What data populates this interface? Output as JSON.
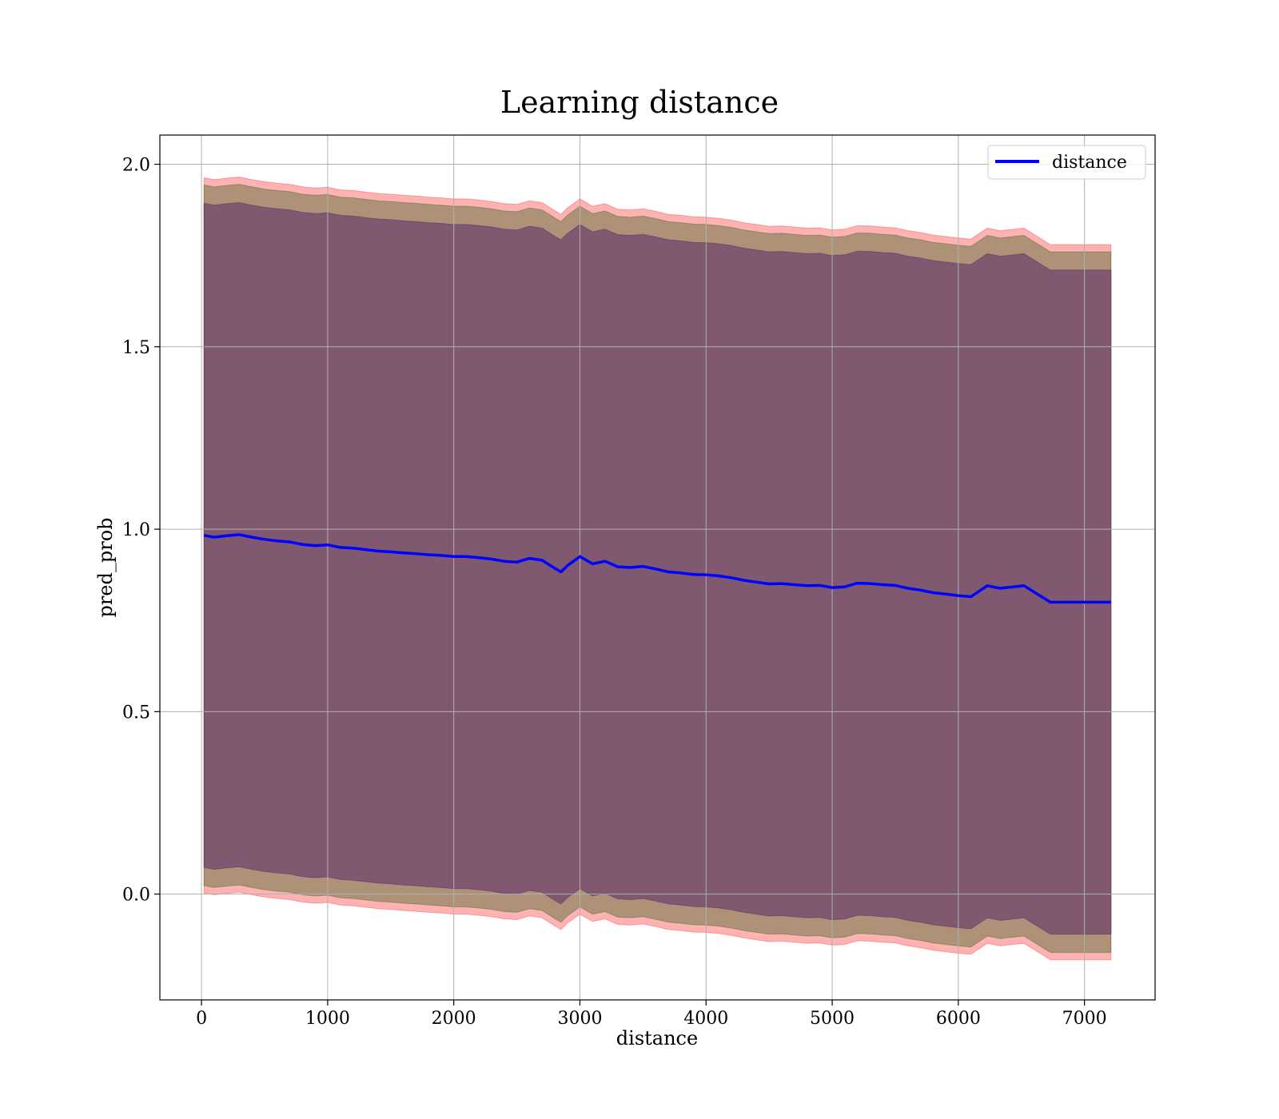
{
  "chart_data": {
    "type": "line",
    "title": "Learning distance",
    "xlabel": "distance",
    "ylabel": "pred_prob",
    "xlim": [
      -330,
      7560
    ],
    "ylim": [
      -0.29,
      2.08
    ],
    "xticks": [
      0,
      1000,
      2000,
      3000,
      4000,
      5000,
      6000,
      7000
    ],
    "yticks": [
      0.0,
      0.5,
      1.0,
      1.5,
      2.0
    ],
    "xtick_labels": [
      "0",
      "1000",
      "2000",
      "3000",
      "4000",
      "5000",
      "6000",
      "7000"
    ],
    "ytick_labels": [
      "0.0",
      "0.5",
      "1.0",
      "1.5",
      "2.0"
    ],
    "grid": true,
    "legend": {
      "position": "top-right",
      "entries": [
        "distance"
      ]
    },
    "colors": {
      "line": "#0000ff",
      "band_outer": "#ff0000",
      "band_middle": "#4b6b2e",
      "band_inner": "#5b2a6e",
      "grid": "#b0b0b0"
    },
    "x": [
      20,
      100,
      200,
      300,
      400,
      500,
      600,
      700,
      800,
      900,
      1000,
      1100,
      1200,
      1300,
      1400,
      1500,
      1600,
      1700,
      1800,
      1900,
      2000,
      2100,
      2200,
      2300,
      2400,
      2500,
      2600,
      2700,
      2800,
      2850,
      2900,
      3000,
      3100,
      3200,
      3300,
      3400,
      3500,
      3600,
      3700,
      3800,
      3900,
      4000,
      4100,
      4200,
      4300,
      4400,
      4500,
      4600,
      4700,
      4800,
      4900,
      5000,
      5100,
      5200,
      5300,
      5400,
      5500,
      5600,
      5700,
      5800,
      5900,
      6000,
      6100,
      6230,
      6330,
      6520,
      6730,
      6850,
      7210
    ],
    "series": [
      {
        "name": "distance",
        "values": [
          0.983,
          0.978,
          0.982,
          0.985,
          0.978,
          0.972,
          0.968,
          0.965,
          0.958,
          0.955,
          0.957,
          0.95,
          0.948,
          0.944,
          0.94,
          0.938,
          0.935,
          0.933,
          0.93,
          0.928,
          0.925,
          0.925,
          0.922,
          0.918,
          0.912,
          0.91,
          0.92,
          0.915,
          0.893,
          0.883,
          0.9,
          0.925,
          0.905,
          0.912,
          0.897,
          0.895,
          0.898,
          0.891,
          0.883,
          0.88,
          0.876,
          0.875,
          0.872,
          0.867,
          0.86,
          0.855,
          0.85,
          0.851,
          0.848,
          0.845,
          0.846,
          0.84,
          0.842,
          0.852,
          0.851,
          0.848,
          0.846,
          0.838,
          0.833,
          0.826,
          0.822,
          0.818,
          0.815,
          0.845,
          0.838,
          0.845,
          0.8,
          0.8,
          0.8
        ]
      }
    ],
    "bands": [
      {
        "halfwidth": 0.98,
        "color": "#ff0000",
        "opacity": 0.3
      },
      {
        "halfwidth": 0.96,
        "color": "#4b6b2e",
        "opacity": 0.45
      },
      {
        "halfwidth": 0.91,
        "color": "#5b2a6e",
        "opacity": 0.55
      }
    ]
  }
}
